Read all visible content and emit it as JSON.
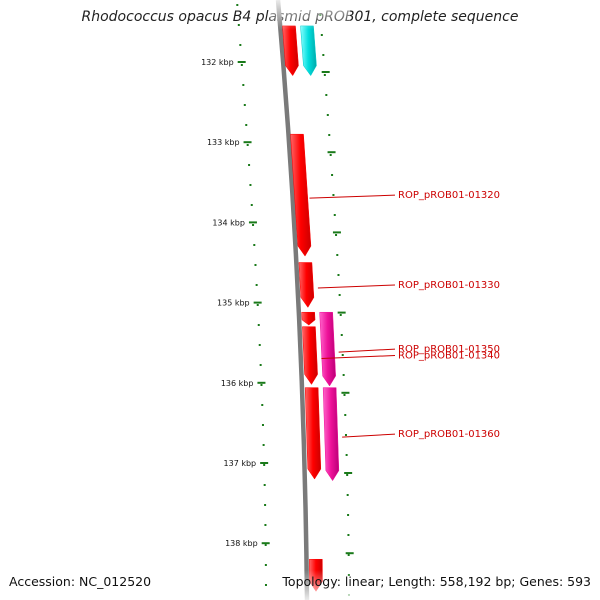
{
  "title": "Rhodococcus opacus B4 plasmid pROB01, complete sequence",
  "accession": "Accession: NC_012520",
  "summary": "Topology: linear; Length: 558,192 bp; Genes: 593",
  "colors": {
    "backbone": "#7a7a7a",
    "tick": "#1a7a1a",
    "gene_forward": "#ff0000",
    "gene_reverse": "#ee1199",
    "gene_other": "#00cccc",
    "label": "#cc0000"
  },
  "diagram": {
    "kbp_start": 132,
    "kbp_end": 138,
    "ticks": [
      {
        "kbp": 132,
        "label": "132 kbp"
      },
      {
        "kbp": 133,
        "label": "133 kbp"
      },
      {
        "kbp": 134,
        "label": "134 kbp"
      },
      {
        "kbp": 135,
        "label": "135 kbp"
      },
      {
        "kbp": 136,
        "label": "136 kbp"
      },
      {
        "kbp": 137,
        "label": "137 kbp"
      },
      {
        "kbp": 138,
        "label": "138 kbp"
      }
    ],
    "genes": [
      {
        "start_kbp": 131.55,
        "end_kbp": 132.17,
        "track": 0,
        "strand": "forward",
        "color": "#ff0000",
        "label": ""
      },
      {
        "start_kbp": 131.55,
        "end_kbp": 132.17,
        "track": 1,
        "strand": "forward",
        "color": "#00cccc",
        "label": ""
      },
      {
        "start_kbp": 132.9,
        "end_kbp": 134.42,
        "track": 0,
        "strand": "forward",
        "color": "#ff0000",
        "label": "ROP_pROB01-01320"
      },
      {
        "start_kbp": 134.5,
        "end_kbp": 135.06,
        "track": 0,
        "strand": "forward",
        "color": "#ff0000",
        "label": "ROP_pROB01-01330"
      },
      {
        "start_kbp": 135.12,
        "end_kbp": 135.28,
        "track": 0,
        "strand": "forward",
        "color": "#ff0000",
        "label": ""
      },
      {
        "start_kbp": 135.3,
        "end_kbp": 136.02,
        "track": 0,
        "strand": "forward",
        "color": "#ff0000",
        "label": "ROP_pROB01-01340"
      },
      {
        "start_kbp": 135.12,
        "end_kbp": 136.04,
        "track": 1,
        "strand": "forward",
        "color": "#ee1199",
        "label": "ROP_pROB01-01350"
      },
      {
        "start_kbp": 136.06,
        "end_kbp": 137.2,
        "track": 0,
        "strand": "forward",
        "color": "#ff0000",
        "label": ""
      },
      {
        "start_kbp": 136.06,
        "end_kbp": 137.22,
        "track": 1,
        "strand": "forward",
        "color": "#ee1199",
        "label": "ROP_pROB01-01360"
      },
      {
        "start_kbp": 138.2,
        "end_kbp": 138.6,
        "track": 0,
        "strand": "forward",
        "color": "#ff0000",
        "label": ""
      }
    ]
  }
}
